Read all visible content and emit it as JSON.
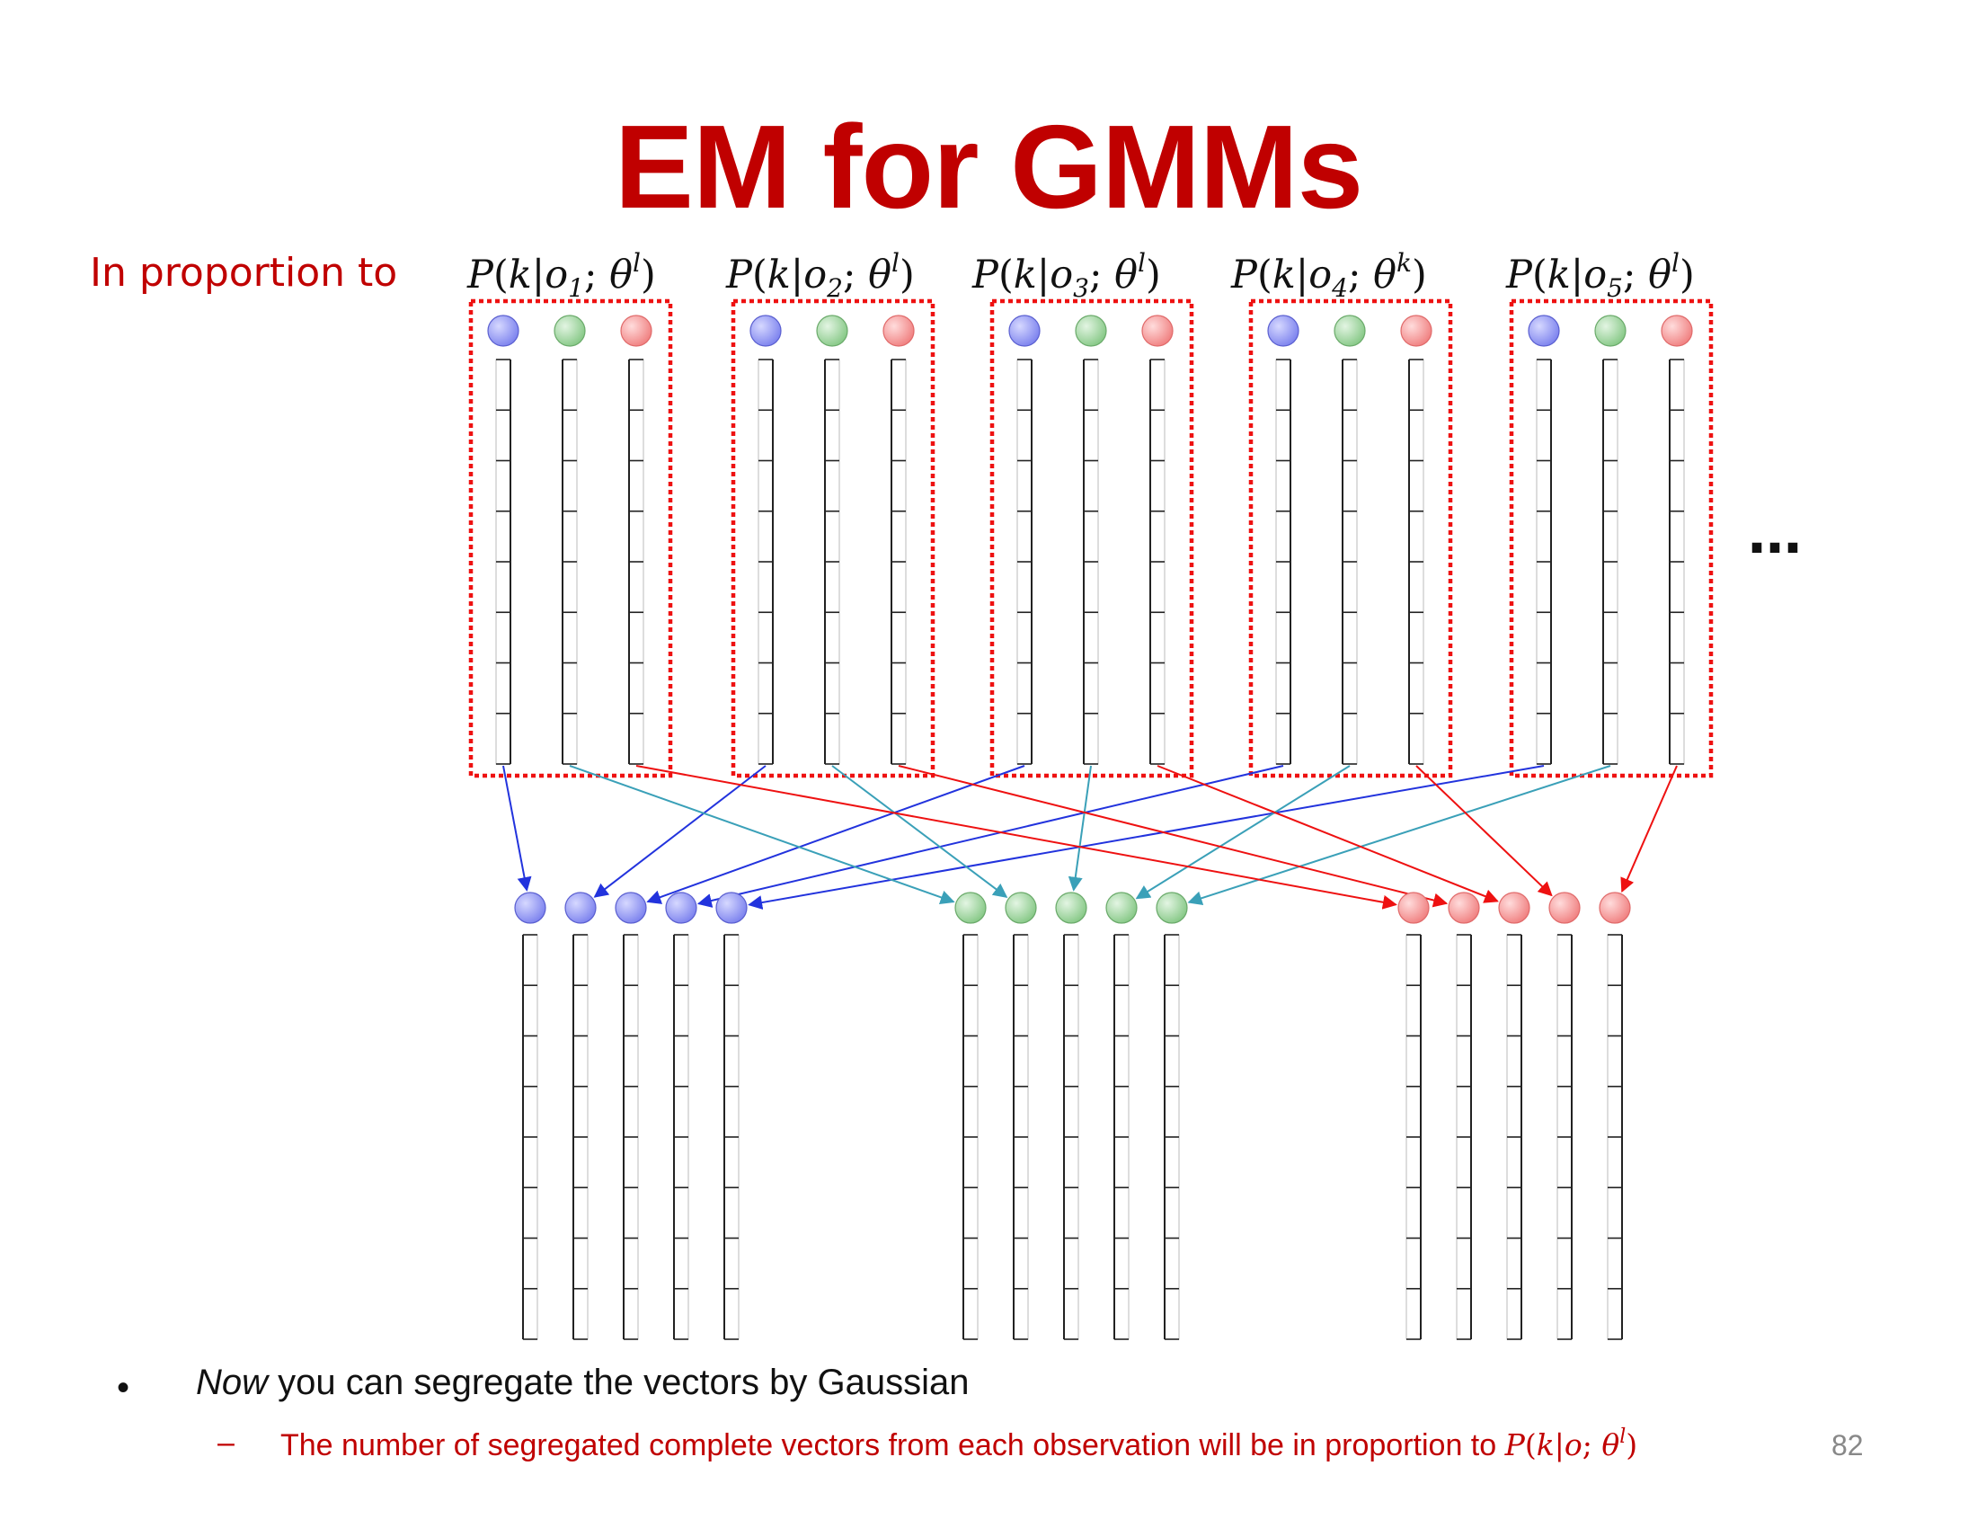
{
  "title": "EM for GMMs",
  "proportion_label": "In proportion to",
  "posteriors": [
    {
      "P": "P",
      "k": "k",
      "o": "o",
      "index": "1",
      "theta": "θ",
      "superscript": "l"
    },
    {
      "P": "P",
      "k": "k",
      "o": "o",
      "index": "2",
      "theta": "θ",
      "superscript": "l"
    },
    {
      "P": "P",
      "k": "k",
      "o": "o",
      "index": "3",
      "theta": "θ",
      "superscript": "l"
    },
    {
      "P": "P",
      "k": "k",
      "o": "o",
      "index": "4",
      "theta": "θ",
      "superscript": "k"
    },
    {
      "P": "P",
      "k": "k",
      "o": "o",
      "index": "5",
      "theta": "θ",
      "superscript": "l"
    }
  ],
  "ellipsis": "…",
  "bullets": {
    "bullet_symbol": "•",
    "main_emphasis": "Now",
    "main_text": " you can segregate the vectors by Gaussian",
    "sub_symbol": "–",
    "sub_text": "The number of segregated complete vectors from each observation will be in proportion to ",
    "sub_math": {
      "P": "P",
      "k": "k",
      "o": "o",
      "theta": "θ",
      "superscript": "l"
    }
  },
  "page_number": "82",
  "colors": {
    "title": "#c00000",
    "blue_gaussian": "#8a8ff0",
    "green_gaussian": "#9bd49b",
    "red_gaussian": "#f59a9a",
    "box_border": "#ee1111",
    "arrow_blue": "#2233dd",
    "arrow_teal": "#3aa0b8",
    "arrow_red": "#ee1111"
  },
  "diagram": {
    "observations": 5,
    "gaussians": [
      "blue",
      "green",
      "red"
    ],
    "cells_per_vector": 8,
    "grouped_per_gaussian": 5
  }
}
